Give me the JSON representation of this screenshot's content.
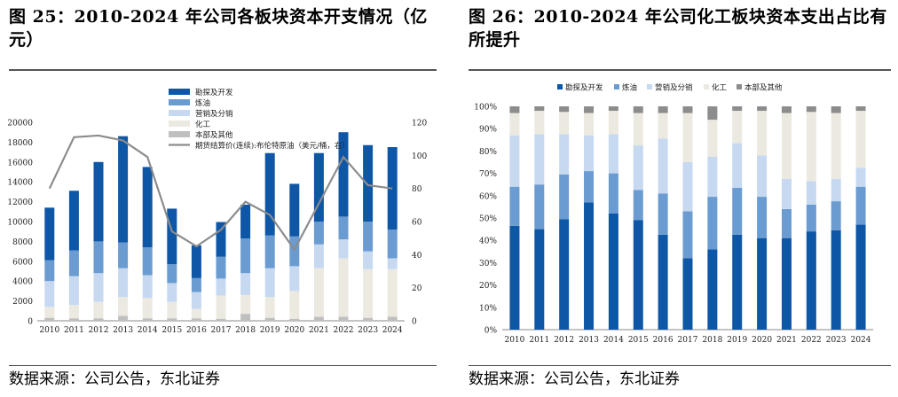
{
  "left": {
    "title": "图 25：2010-2024 年公司各板块资本开支情况（亿元）",
    "source": "数据来源：公司公告，东北证券",
    "chart_data": {
      "type": "bar",
      "stacked": true,
      "categories": [
        "2010",
        "2011",
        "2012",
        "2013",
        "2014",
        "2015",
        "2016",
        "2017",
        "2018",
        "2019",
        "2020",
        "2021",
        "2022",
        "2023",
        "2024"
      ],
      "series": [
        {
          "name": "本部及其他",
          "color": "#bfbfbf",
          "values": [
            300,
            250,
            250,
            500,
            250,
            250,
            250,
            200,
            700,
            300,
            200,
            400,
            400,
            300,
            400
          ]
        },
        {
          "name": "化工",
          "color": "#ece9e1",
          "values": [
            1100,
            1350,
            1650,
            1900,
            2050,
            1650,
            950,
            2350,
            1900,
            2100,
            2800,
            4900,
            5900,
            4900,
            4800
          ]
        },
        {
          "name": "营销及分销",
          "color": "#c6d9f1",
          "values": [
            2600,
            2900,
            2900,
            2900,
            2300,
            1900,
            1700,
            1700,
            2200,
            2900,
            2500,
            2400,
            1900,
            1800,
            1100
          ]
        },
        {
          "name": "炼油",
          "color": "#6a9bd1",
          "values": [
            2100,
            2600,
            3200,
            2600,
            2800,
            1900,
            1400,
            2200,
            3500,
            3300,
            3000,
            2300,
            2300,
            3000,
            2900
          ]
        },
        {
          "name": "勘探及开发",
          "color": "#0e56a6",
          "values": [
            5300,
            6000,
            8000,
            10700,
            8100,
            5600,
            3300,
            3500,
            3400,
            8300,
            5300,
            6900,
            8500,
            7700,
            8300
          ]
        }
      ],
      "line": {
        "name": "期货结算价(连续):布伦特原油（美元/桶，右）",
        "color": "#8c8c8c",
        "values": [
          80,
          111,
          112,
          109,
          99,
          54,
          45,
          55,
          72,
          64,
          43,
          71,
          99,
          82,
          80
        ]
      },
      "y_left": {
        "min": 0,
        "max": 20000,
        "ticks": [
          0,
          2000,
          4000,
          6000,
          8000,
          10000,
          12000,
          14000,
          16000,
          18000,
          20000
        ]
      },
      "y_right": {
        "min": 0,
        "max": 120,
        "ticks": [
          0,
          20,
          40,
          60,
          80,
          100,
          120
        ]
      },
      "legend_position": "top-right"
    }
  },
  "right": {
    "title": "图 26：2010-2024 年公司化工板块资本支出占比有所提升",
    "source": "数据来源：公司公告，东北证券",
    "chart_data": {
      "type": "bar",
      "stacked": true,
      "percent": true,
      "categories": [
        "2010",
        "2011",
        "2012",
        "2013",
        "2014",
        "2015",
        "2016",
        "2017",
        "2018",
        "2019",
        "2020",
        "2021",
        "2022",
        "2023",
        "2024"
      ],
      "series": [
        {
          "name": "勘探及开发",
          "color": "#0e56a6",
          "values": [
            46.5,
            45,
            49.5,
            57,
            52,
            49,
            42.5,
            32,
            36,
            42.5,
            41,
            41,
            44,
            44.5,
            47
          ]
        },
        {
          "name": "炼油",
          "color": "#6a9bd1",
          "values": [
            17.5,
            20,
            20,
            14,
            18,
            13.5,
            18.5,
            21,
            23.5,
            21,
            18.5,
            13,
            12,
            13,
            17
          ]
        },
        {
          "name": "营销及分销",
          "color": "#c6d9f1",
          "values": [
            23,
            22.5,
            18,
            16,
            17.5,
            20,
            24.5,
            22,
            18,
            20,
            18.5,
            13.5,
            10.5,
            10,
            8.5
          ]
        },
        {
          "name": "化工",
          "color": "#ece9e1",
          "values": [
            10,
            10.5,
            10,
            10,
            10.5,
            14.5,
            11.5,
            22,
            16.5,
            14.5,
            20,
            29.5,
            31,
            29.5,
            25.5
          ]
        },
        {
          "name": "本部及其他",
          "color": "#8c8c8c",
          "values": [
            3,
            2,
            2.5,
            3,
            2,
            3,
            3,
            3,
            6,
            2,
            2,
            3,
            2.5,
            3,
            2
          ]
        }
      ],
      "y": {
        "min": 0,
        "max": 100,
        "ticks": [
          "0%",
          "10%",
          "20%",
          "30%",
          "40%",
          "50%",
          "60%",
          "70%",
          "80%",
          "90%",
          "100%"
        ]
      },
      "legend_position": "top"
    }
  }
}
